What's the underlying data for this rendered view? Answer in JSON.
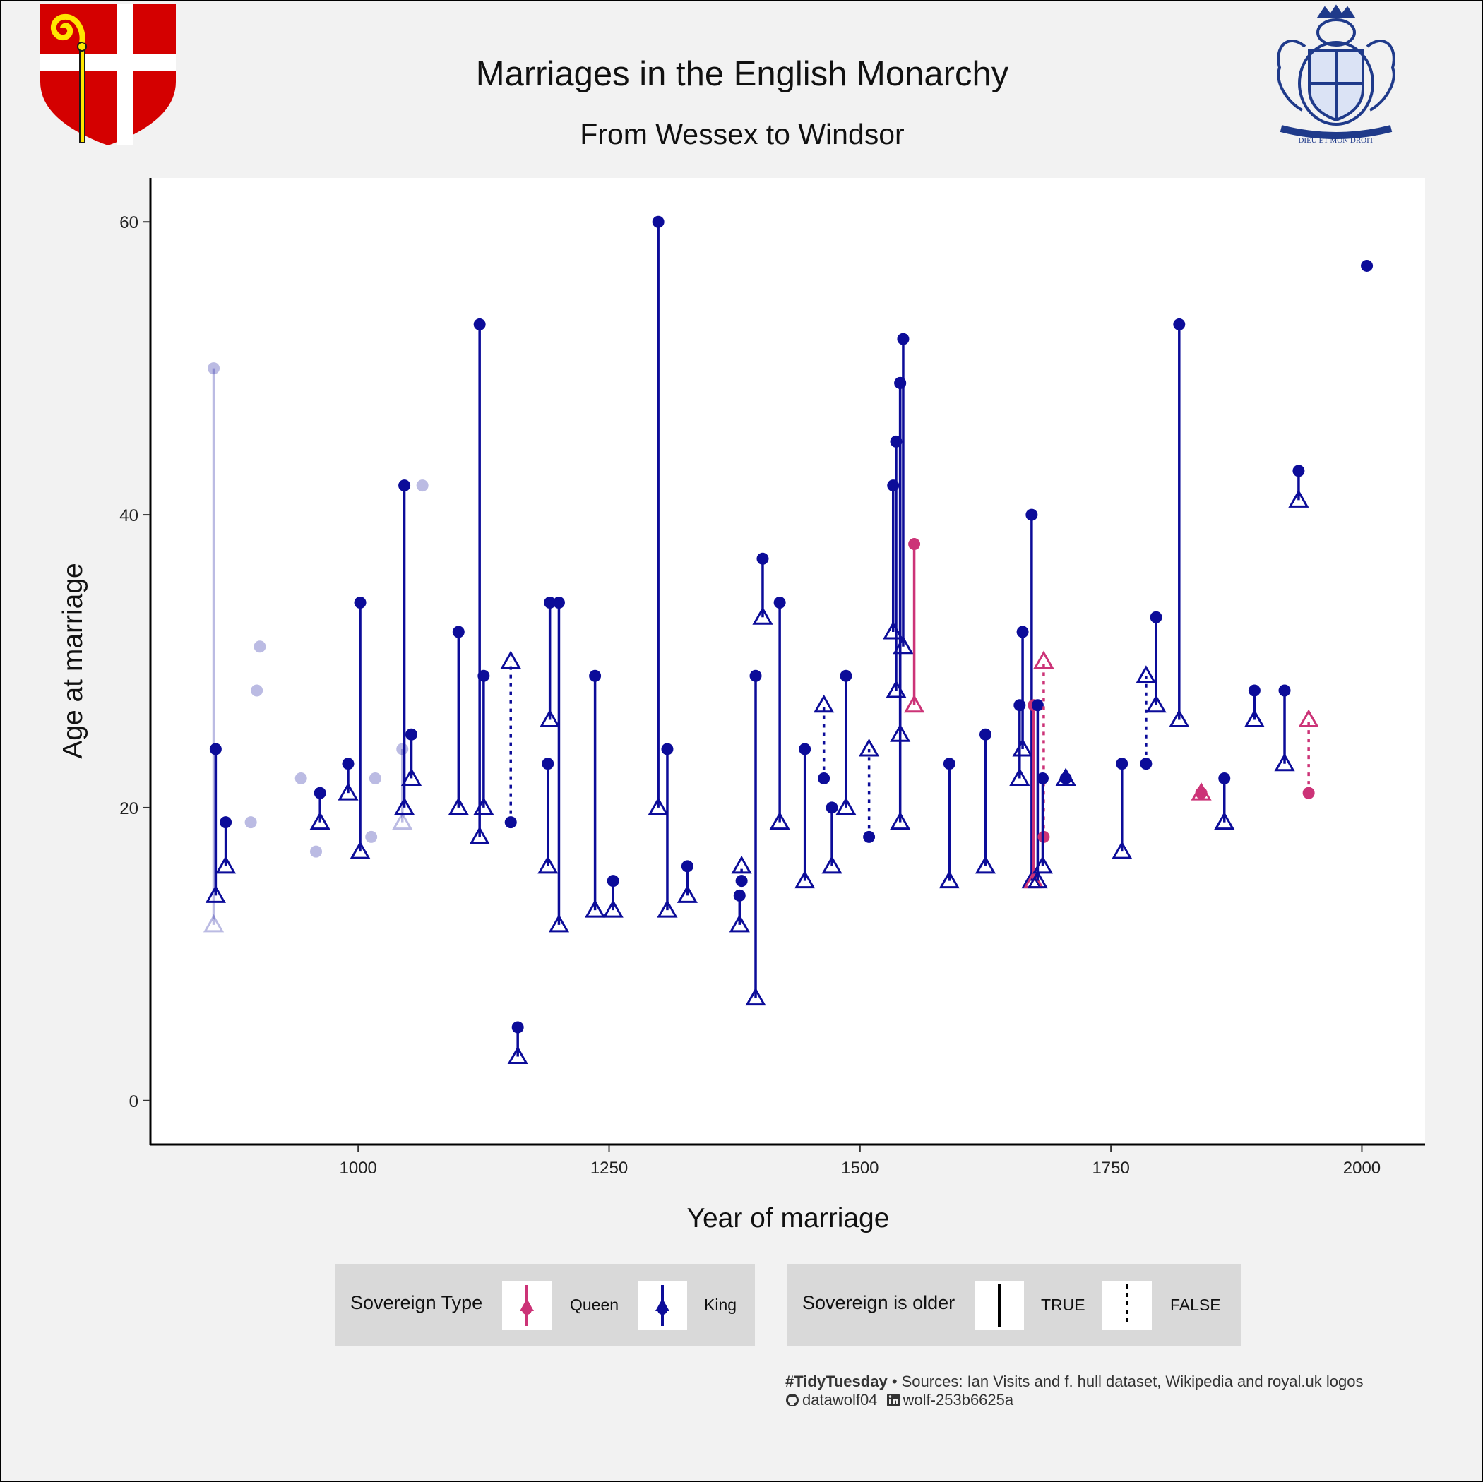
{
  "title": "Marriages in the English Monarchy",
  "subtitle": "From Wessex to Windsor",
  "logos": {
    "left": "diocese-shield-crosier-icon",
    "right": "royal-coat-of-arms-icon",
    "motto": "DIEU ET MON DROIT"
  },
  "colors": {
    "king": "#0c0c99",
    "queen": "#cc3377",
    "background": "#f2f2f2",
    "panel": "#ffffff",
    "legend_bg": "#d9d9d9"
  },
  "legend": {
    "type_title": "Sovereign Type",
    "type_items": [
      "Queen",
      "King"
    ],
    "older_title": "Sovereign is older",
    "older_items": [
      "TRUE",
      "FALSE"
    ]
  },
  "caption": {
    "tag": "#TidyTuesday",
    "sources": "• Sources: Ian Visits and f. hull dataset, Wikipedia and royal.uk logos",
    "github": "datawolf04",
    "linkedin": "wolf-253b6625a"
  },
  "chart_data": {
    "type": "scatter",
    "title": "Marriages in the English Monarchy",
    "subtitle": "From Wessex to Windsor",
    "xlabel": "Year of marriage",
    "ylabel": "Age at marriage",
    "xlim": [
      793,
      2063
    ],
    "ylim": [
      -3,
      63
    ],
    "xticks": [
      1000,
      1250,
      1500,
      1750,
      2000
    ],
    "yticks": [
      0,
      20,
      40,
      60
    ],
    "grid": false,
    "encoding": "Filled circle = sovereign age; open triangle = consort age; solid segment = sovereign older, dotted = sovereign younger; faded = uncertain",
    "marriages": [
      {
        "year": 856,
        "sovereign_age": 50,
        "consort_age": 12,
        "type": "King",
        "faded": true
      },
      {
        "year": 858,
        "sovereign_age": 24,
        "consort_age": 14,
        "type": "King"
      },
      {
        "year": 868,
        "sovereign_age": 19,
        "consort_age": 16,
        "type": "King"
      },
      {
        "year": 893,
        "sovereign_age": 19,
        "type": "King",
        "faded": true
      },
      {
        "year": 899,
        "sovereign_age": 28,
        "type": "King",
        "faded": true
      },
      {
        "year": 902,
        "sovereign_age": 31,
        "type": "King",
        "faded": true
      },
      {
        "year": 943,
        "sovereign_age": 22,
        "type": "King",
        "faded": true
      },
      {
        "year": 958,
        "sovereign_age": 17,
        "type": "King",
        "faded": true
      },
      {
        "year": 962,
        "sovereign_age": 21,
        "consort_age": 19,
        "type": "King"
      },
      {
        "year": 990,
        "sovereign_age": 23,
        "consort_age": 21,
        "type": "King"
      },
      {
        "year": 1002,
        "sovereign_age": 34,
        "consort_age": 17,
        "type": "King"
      },
      {
        "year": 1013,
        "sovereign_age": 18,
        "type": "King",
        "faded": true
      },
      {
        "year": 1017,
        "sovereign_age": 22,
        "type": "King",
        "faded": true
      },
      {
        "year": 1044,
        "sovereign_age": 24,
        "consort_age": 19,
        "type": "King",
        "faded": true
      },
      {
        "year": 1046,
        "sovereign_age": 42,
        "consort_age": 20,
        "type": "King"
      },
      {
        "year": 1053,
        "sovereign_age": 25,
        "consort_age": 22,
        "type": "King"
      },
      {
        "year": 1064,
        "sovereign_age": 42,
        "type": "King",
        "faded": true
      },
      {
        "year": 1100,
        "sovereign_age": 32,
        "consort_age": 20,
        "type": "King"
      },
      {
        "year": 1121,
        "sovereign_age": 53,
        "consort_age": 18,
        "type": "King"
      },
      {
        "year": 1125,
        "sovereign_age": 29,
        "consort_age": 20,
        "type": "King"
      },
      {
        "year": 1152,
        "sovereign_age": 19,
        "consort_age": 30,
        "type": "King"
      },
      {
        "year": 1159,
        "sovereign_age": 5,
        "consort_age": 3,
        "type": "King"
      },
      {
        "year": 1189,
        "sovereign_age": 23,
        "consort_age": 16,
        "type": "King"
      },
      {
        "year": 1191,
        "sovereign_age": 34,
        "consort_age": 26,
        "type": "King"
      },
      {
        "year": 1200,
        "sovereign_age": 34,
        "consort_age": 12,
        "type": "King"
      },
      {
        "year": 1236,
        "sovereign_age": 29,
        "consort_age": 13,
        "type": "King"
      },
      {
        "year": 1254,
        "sovereign_age": 15,
        "consort_age": 13,
        "type": "King"
      },
      {
        "year": 1299,
        "sovereign_age": 60,
        "consort_age": 20,
        "type": "King"
      },
      {
        "year": 1308,
        "sovereign_age": 24,
        "consort_age": 13,
        "type": "King"
      },
      {
        "year": 1328,
        "sovereign_age": 16,
        "consort_age": 14,
        "type": "King"
      },
      {
        "year": 1380,
        "sovereign_age": 14,
        "consort_age": 12,
        "type": "King"
      },
      {
        "year": 1382,
        "sovereign_age": 15,
        "consort_age": 16,
        "type": "King"
      },
      {
        "year": 1396,
        "sovereign_age": 29,
        "consort_age": 7,
        "type": "King"
      },
      {
        "year": 1403,
        "sovereign_age": 37,
        "consort_age": 33,
        "type": "King"
      },
      {
        "year": 1420,
        "sovereign_age": 34,
        "consort_age": 19,
        "type": "King"
      },
      {
        "year": 1445,
        "sovereign_age": 24,
        "consort_age": 15,
        "type": "King"
      },
      {
        "year": 1464,
        "sovereign_age": 22,
        "consort_age": 27,
        "type": "King"
      },
      {
        "year": 1472,
        "sovereign_age": 20,
        "consort_age": 16,
        "type": "King"
      },
      {
        "year": 1486,
        "sovereign_age": 29,
        "consort_age": 20,
        "type": "King"
      },
      {
        "year": 1509,
        "sovereign_age": 18,
        "consort_age": 24,
        "type": "King"
      },
      {
        "year": 1533,
        "sovereign_age": 42,
        "consort_age": 32,
        "type": "King"
      },
      {
        "year": 1536,
        "sovereign_age": 45,
        "consort_age": 28,
        "type": "King"
      },
      {
        "year": 1540,
        "sovereign_age": 49,
        "consort_age": 25,
        "type": "King"
      },
      {
        "year": 1540,
        "sovereign_age": 49,
        "consort_age": 19,
        "type": "King"
      },
      {
        "year": 1543,
        "sovereign_age": 52,
        "consort_age": 31,
        "type": "King"
      },
      {
        "year": 1554,
        "sovereign_age": 38,
        "consort_age": 27,
        "type": "Queen"
      },
      {
        "year": 1589,
        "sovereign_age": 23,
        "consort_age": 15,
        "type": "King"
      },
      {
        "year": 1625,
        "sovereign_age": 25,
        "consort_age": 16,
        "type": "King"
      },
      {
        "year": 1659,
        "sovereign_age": 27,
        "consort_age": 22,
        "type": "King"
      },
      {
        "year": 1662,
        "sovereign_age": 32,
        "consort_age": 24,
        "type": "King"
      },
      {
        "year": 1671,
        "sovereign_age": 40,
        "consort_age": 15,
        "type": "King"
      },
      {
        "year": 1673,
        "sovereign_age": 27,
        "consort_age": 15,
        "type": "Queen"
      },
      {
        "year": 1677,
        "sovereign_age": 27,
        "consort_age": 15,
        "type": "King"
      },
      {
        "year": 1683,
        "sovereign_age": 18,
        "consort_age": 30,
        "type": "Queen"
      },
      {
        "year": 1682,
        "sovereign_age": 22,
        "consort_age": 16,
        "type": "King"
      },
      {
        "year": 1705,
        "sovereign_age": 22,
        "consort_age": 22,
        "type": "King"
      },
      {
        "year": 1761,
        "sovereign_age": 23,
        "consort_age": 17,
        "type": "King"
      },
      {
        "year": 1785,
        "sovereign_age": 23,
        "consort_age": 29,
        "type": "King"
      },
      {
        "year": 1795,
        "sovereign_age": 33,
        "consort_age": 27,
        "type": "King"
      },
      {
        "year": 1818,
        "sovereign_age": 53,
        "consort_age": 26,
        "type": "King"
      },
      {
        "year": 1840,
        "sovereign_age": 21,
        "consort_age": 21,
        "type": "Queen"
      },
      {
        "year": 1863,
        "sovereign_age": 22,
        "consort_age": 19,
        "type": "King"
      },
      {
        "year": 1893,
        "sovereign_age": 28,
        "consort_age": 26,
        "type": "King"
      },
      {
        "year": 1923,
        "sovereign_age": 28,
        "consort_age": 23,
        "type": "King"
      },
      {
        "year": 1937,
        "sovereign_age": 43,
        "consort_age": 41,
        "type": "King"
      },
      {
        "year": 1947,
        "sovereign_age": 21,
        "consort_age": 26,
        "type": "Queen"
      },
      {
        "year": 2005,
        "sovereign_age": 57,
        "type": "King"
      }
    ]
  }
}
